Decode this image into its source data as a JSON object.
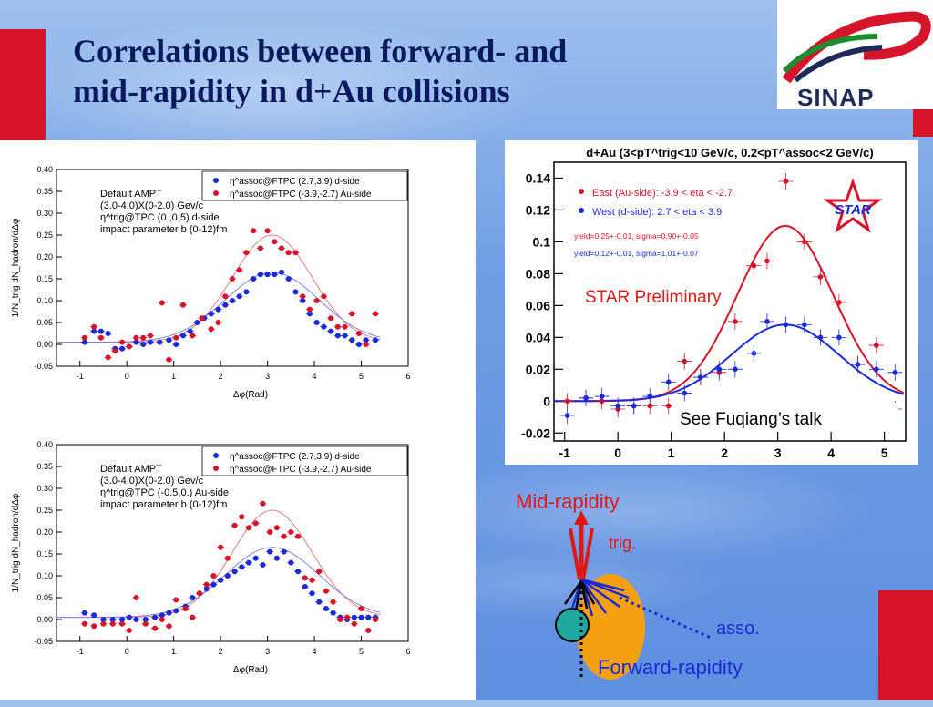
{
  "title": {
    "line1": "Correlations between forward- and",
    "line2": "mid-rapidity in d+Au  collisions"
  },
  "logo": {
    "text": "SINAP"
  },
  "colors": {
    "red": "#d6152a",
    "blue": "#1a2ad8",
    "title": "#0b1a5e",
    "orange": "#f5a011"
  },
  "chart_data": [
    {
      "type": "scatter",
      "xlabel": "Δφ(Rad)",
      "ylabel": "1/N_trig dN_hadron/dΔφ",
      "xlim": [
        -1.5,
        6
      ],
      "ylim": [
        -0.05,
        0.4
      ],
      "xticks": [
        "-1",
        "0",
        "1",
        "2",
        "3",
        "4",
        "5",
        "6"
      ],
      "yticks": [
        "-0.05",
        "0.00",
        "0.05",
        "0.10",
        "0.15",
        "0.20",
        "0.25",
        "0.30",
        "0.35",
        "0.40"
      ],
      "annotation": [
        "Default AMPT",
        "(3.0-4.0)X(0-2.0) Gev/c",
        "η^trig@TPC (0.,0.5) d-side",
        "impact parameter b (0-12)fm"
      ],
      "legend": [
        "η^assoc@FTPC (2.7,3.9) d-side",
        "η^assoc@FTPC (-3.9,-2.7) Au-side"
      ],
      "series": [
        {
          "name": "η^assoc@FTPC (2.7,3.9) d-side",
          "color": "blue",
          "x": [
            -0.9,
            -0.7,
            -0.55,
            -0.4,
            -0.25,
            -0.1,
            0.05,
            0.2,
            0.35,
            0.5,
            0.7,
            0.9,
            1.05,
            1.2,
            1.35,
            1.5,
            1.65,
            1.8,
            1.95,
            2.1,
            2.25,
            2.4,
            2.55,
            2.7,
            2.85,
            3.0,
            3.15,
            3.3,
            3.45,
            3.6,
            3.75,
            3.9,
            4.05,
            4.2,
            4.35,
            4.5,
            4.65,
            4.8,
            4.95,
            5.1,
            5.3
          ],
          "y": [
            0.005,
            0.03,
            0.03,
            0.025,
            -0.01,
            -0.01,
            -0.005,
            0.005,
            0.0,
            0.005,
            0.005,
            0.01,
            0.0,
            0.02,
            0.03,
            0.05,
            0.06,
            0.07,
            0.08,
            0.09,
            0.1,
            0.11,
            0.12,
            0.15,
            0.16,
            0.16,
            0.16,
            0.165,
            0.15,
            0.12,
            0.1,
            0.07,
            0.05,
            0.04,
            0.03,
            0.02,
            0.02,
            0.01,
            0.0,
            0.01,
            0.01
          ]
        },
        {
          "name": "η^assoc@FTPC (-3.9,-2.7) Au-side",
          "color": "red",
          "x": [
            -0.9,
            -0.7,
            -0.55,
            -0.4,
            -0.25,
            -0.1,
            0.05,
            0.2,
            0.35,
            0.5,
            0.75,
            0.9,
            1.05,
            1.2,
            1.4,
            1.6,
            1.8,
            1.95,
            2.1,
            2.25,
            2.4,
            2.55,
            2.7,
            2.85,
            3.0,
            3.15,
            3.3,
            3.45,
            3.6,
            3.75,
            3.9,
            4.05,
            4.2,
            4.35,
            4.5,
            4.65,
            4.8,
            4.95,
            5.1,
            5.3
          ],
          "y": [
            0.015,
            0.04,
            0.015,
            -0.03,
            -0.015,
            0.005,
            -0.005,
            0.015,
            0.015,
            0.02,
            0.095,
            -0.035,
            0.015,
            0.09,
            0.02,
            0.06,
            0.035,
            0.05,
            0.11,
            0.15,
            0.17,
            0.21,
            0.26,
            0.22,
            0.26,
            0.235,
            0.22,
            0.21,
            0.21,
            0.11,
            0.08,
            0.1,
            0.11,
            0.06,
            0.04,
            0.04,
            0.07,
            0.025,
            0.0,
            0.07
          ]
        }
      ]
    },
    {
      "type": "scatter",
      "xlabel": "Δφ(Rad)",
      "ylabel": "1/N_trig dN_hadron/dΔφ",
      "xlim": [
        -1.5,
        6
      ],
      "ylim": [
        -0.05,
        0.4
      ],
      "xticks": [
        "-1",
        "0",
        "1",
        "2",
        "3",
        "4",
        "5",
        "6"
      ],
      "yticks": [
        "-0.05",
        "0.00",
        "0.05",
        "0.10",
        "0.15",
        "0.20",
        "0.25",
        "0.30",
        "0.35",
        "0.40"
      ],
      "annotation": [
        "Default AMPT",
        "(3.0-4.0)X(0-2.0) Gev/c",
        "η^trig@TPC (-0.5,0.) Au-side",
        "impact parameter b (0-12)fm"
      ],
      "legend": [
        "η^assoc@FTPC (2.7,3.9) d-side",
        "η^assoc@FTPC (-3.9,-2.7) Au-side"
      ],
      "series": [
        {
          "name": "η^assoc@FTPC (2.7,3.9) d-side",
          "color": "blue",
          "x": [
            -0.9,
            -0.7,
            -0.5,
            -0.3,
            -0.1,
            0.05,
            0.2,
            0.4,
            0.6,
            0.75,
            0.9,
            1.05,
            1.25,
            1.4,
            1.55,
            1.7,
            1.85,
            2.0,
            2.15,
            2.3,
            2.45,
            2.6,
            2.75,
            2.9,
            3.05,
            3.2,
            3.35,
            3.5,
            3.65,
            3.8,
            3.95,
            4.1,
            4.25,
            4.4,
            4.55,
            4.7,
            4.85,
            5.0,
            5.15,
            5.3
          ],
          "y": [
            0.015,
            0.01,
            0.0,
            0.0,
            0.0,
            0.005,
            0.0,
            0.0,
            0.005,
            0.01,
            0.015,
            0.02,
            0.03,
            0.05,
            0.06,
            0.07,
            0.08,
            0.09,
            0.1,
            0.11,
            0.12,
            0.13,
            0.14,
            0.125,
            0.155,
            0.14,
            0.155,
            0.13,
            0.11,
            0.075,
            0.06,
            0.04,
            0.025,
            0.015,
            0.005,
            0.0,
            0.005,
            0.005,
            0.005,
            0.005
          ]
        },
        {
          "name": "η^assoc@FTPC (-3.9,-2.7) Au-side",
          "color": "red",
          "x": [
            -0.9,
            -0.7,
            -0.5,
            -0.3,
            -0.1,
            0.05,
            0.2,
            0.4,
            0.6,
            0.75,
            0.9,
            1.05,
            1.25,
            1.4,
            1.55,
            1.7,
            1.85,
            2.0,
            2.15,
            2.3,
            2.45,
            2.6,
            2.75,
            2.9,
            3.05,
            3.2,
            3.35,
            3.5,
            3.65,
            3.8,
            3.95,
            4.1,
            4.25,
            4.4,
            4.55,
            4.7,
            4.85,
            5.0,
            5.15,
            5.3
          ],
          "y": [
            -0.01,
            -0.015,
            -0.01,
            -0.01,
            -0.01,
            -0.025,
            0.05,
            -0.01,
            -0.02,
            0.0,
            -0.015,
            0.045,
            0.025,
            0.005,
            0.06,
            0.08,
            0.1,
            0.165,
            0.14,
            0.215,
            0.235,
            0.21,
            0.22,
            0.265,
            0.2,
            0.21,
            0.19,
            0.2,
            0.19,
            0.095,
            0.09,
            0.11,
            0.065,
            0.04,
            0.0,
            0.005,
            -0.01,
            0.025,
            -0.025,
            0.0
          ]
        }
      ]
    },
    {
      "type": "scatter",
      "title": "d+Au (3<pT^trig<10 GeV/c, 0.2<pT^assoc<2 GeV/c)",
      "xlim": [
        -1.2,
        5.4
      ],
      "ylim": [
        -0.025,
        0.15
      ],
      "xticks": [
        "-1",
        "0",
        "1",
        "2",
        "3",
        "4",
        "5"
      ],
      "yticks": [
        "-0.02",
        "0",
        "0.02",
        "0.04",
        "0.06",
        "0.08",
        "0.1",
        "0.12",
        "0.14"
      ],
      "legend": [
        "East (Au-side): -3.9 < eta < -2.7",
        "West (d-side): 2.7 < eta < 3.9"
      ],
      "fit_text": [
        "yield=0.25+-0.01, sigma=0.90+-0.05",
        "yield=0.12+-0.01, sigma=1.01+-0.07"
      ],
      "preliminary": "STAR Preliminary",
      "note": "See Fuqiang’s talk",
      "logo_text": "STAR",
      "series": [
        {
          "name": "East (Au-side): -3.9 < eta < -2.7",
          "color": "red",
          "x": [
            -0.95,
            -0.6,
            -0.3,
            0.0,
            0.3,
            0.6,
            0.95,
            1.25,
            1.55,
            1.9,
            2.2,
            2.55,
            2.8,
            3.15,
            3.5,
            3.8,
            4.15,
            4.5,
            4.85,
            5.2
          ],
          "y": [
            0.0,
            0.002,
            0.0,
            -0.005,
            -0.003,
            -0.003,
            -0.003,
            0.025,
            0.015,
            0.018,
            0.05,
            0.085,
            0.088,
            0.138,
            0.1,
            0.078,
            0.062,
            0.023,
            0.035,
            -0.005
          ]
        },
        {
          "name": "West (d-side): 2.7 < eta < 3.9",
          "color": "blue",
          "x": [
            -0.95,
            -0.6,
            -0.3,
            0.0,
            0.3,
            0.6,
            0.95,
            1.25,
            1.55,
            1.9,
            2.2,
            2.55,
            2.8,
            3.15,
            3.5,
            3.8,
            4.15,
            4.5,
            4.85,
            5.2
          ],
          "y": [
            -0.009,
            0.002,
            0.003,
            -0.003,
            -0.003,
            0.003,
            0.012,
            0.005,
            0.015,
            0.02,
            0.02,
            0.03,
            0.05,
            0.048,
            0.048,
            0.04,
            0.04,
            0.023,
            0.02,
            0.018
          ]
        }
      ],
      "fits": [
        {
          "color": "red",
          "amp": 0.11,
          "mu": 3.14,
          "sigma": 0.9
        },
        {
          "color": "blue",
          "amp": 0.048,
          "mu": 3.14,
          "sigma": 1.01
        }
      ]
    }
  ],
  "diagram": {
    "mid": "Mid-rapidity",
    "trig": "trig.",
    "asso": "asso.",
    "forward": "Forward-rapidity"
  }
}
